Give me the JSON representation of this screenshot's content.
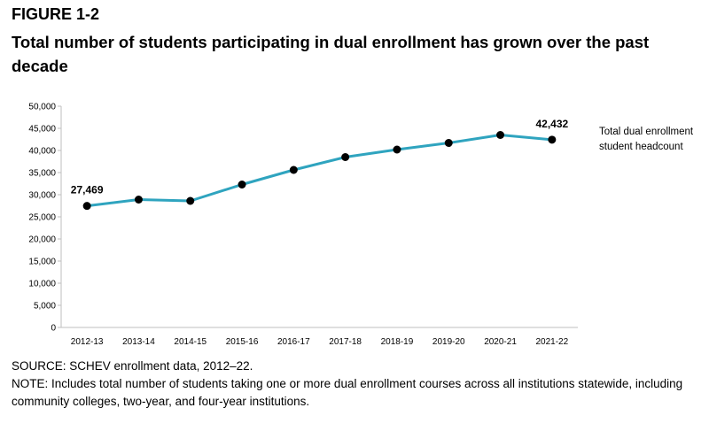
{
  "figure": {
    "label": "FIGURE 1-2",
    "title": "Total number of students participating in dual enrollment has grown over the past decade"
  },
  "chart_data": {
    "type": "line",
    "categories": [
      "2012-13",
      "2013-14",
      "2014-15",
      "2015-16",
      "2016-17",
      "2017-18",
      "2018-19",
      "2019-20",
      "2020-21",
      "2021-22"
    ],
    "series": [
      {
        "name": "Total dual enrollment student headcount",
        "name_lines": [
          "Total dual enrollment",
          "student headcount"
        ],
        "values": [
          27469,
          28900,
          28600,
          32300,
          35600,
          38500,
          40200,
          41700,
          43500,
          42432
        ],
        "color": "#2fa4bf"
      }
    ],
    "data_labels": [
      {
        "index": 0,
        "text": "27,469"
      },
      {
        "index": 9,
        "text": "42,432"
      }
    ],
    "y_ticks": [
      "0",
      "5,000",
      "10,000",
      "15,000",
      "20,000",
      "25,000",
      "30,000",
      "35,000",
      "40,000",
      "45,000",
      "50,000"
    ],
    "ylim": [
      0,
      50000
    ],
    "grid": false,
    "legend_position": "right"
  },
  "footer": {
    "source": "SOURCE: SCHEV enrollment data, 2012–22.",
    "note": "NOTE: Includes total number of students taking one or more dual enrollment courses across all institutions statewide, including community colleges, two-year, and four-year institutions."
  }
}
